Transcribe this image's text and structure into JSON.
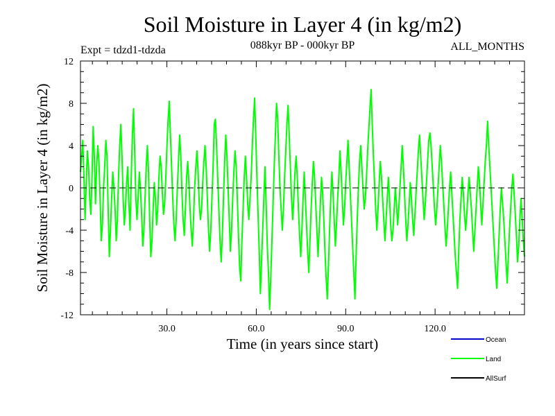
{
  "chart_data": {
    "type": "line",
    "title": "Soil Moisture in Layer 4 (in kg/m2)",
    "subtitle_left": "Expt = tdzd1-tdzda",
    "subtitle_center": "088kyr BP - 000kyr BP",
    "subtitle_right": "ALL_MONTHS",
    "xlabel": "Time (in years since start)",
    "ylabel": "Soil Moisture in Layer 4 (in kg/m2)",
    "xlim": [
      1,
      150
    ],
    "ylim": [
      -12,
      12
    ],
    "x_ticks": [
      30,
      60,
      90,
      120
    ],
    "x_tick_labels": [
      "30.0",
      "60.0",
      "90.0",
      "120.0"
    ],
    "y_ticks": [
      -12,
      -8,
      -4,
      0,
      4,
      8,
      12
    ],
    "y_tick_labels": [
      "-12",
      "-8",
      "-4",
      "0",
      "4",
      "8",
      "12"
    ],
    "zero_line": true,
    "legend": [
      {
        "name": "Ocean",
        "color": "#0000cc"
      },
      {
        "name": "Land",
        "color": "#00ff00"
      },
      {
        "name": "AllSurf",
        "color": "#000000"
      }
    ],
    "series": [
      {
        "name": "Land",
        "color": "#00ff00",
        "x_start": 1,
        "x_end": 150,
        "values": [
          1.5,
          3.0,
          4.5,
          1.0,
          -3.0,
          0.5,
          3.5,
          2.0,
          -1.0,
          -2.5,
          1.0,
          5.8,
          3.0,
          -1.5,
          2.0,
          4.0,
          2.5,
          -1.0,
          -5.0,
          -3.5,
          0.0,
          2.0,
          4.5,
          3.0,
          -2.0,
          -6.5,
          -4.0,
          -1.0,
          1.5,
          0.0,
          -2.0,
          -5.0,
          -3.0,
          1.0,
          4.0,
          6.0,
          3.0,
          -1.0,
          -3.5,
          -2.0,
          0.5,
          2.0,
          -1.5,
          -4.0,
          1.0,
          5.0,
          7.5,
          3.5,
          -1.0,
          -3.0,
          -1.0,
          1.5,
          0.0,
          -2.5,
          -5.5,
          -4.0,
          -1.0,
          2.0,
          4.0,
          1.5,
          -3.0,
          -6.5,
          -5.0,
          -2.0,
          0.5,
          -1.0,
          -3.5,
          -2.0,
          1.0,
          3.0,
          2.0,
          -0.5,
          -2.5,
          -1.5,
          1.0,
          4.0,
          6.5,
          8.2,
          5.0,
          2.0,
          -1.0,
          -3.5,
          -5.0,
          -3.0,
          0.0,
          2.5,
          5.0,
          3.0,
          -0.5,
          -3.0,
          -4.5,
          -2.0,
          1.0,
          2.5,
          0.5,
          -2.0,
          -4.0,
          -5.5,
          -3.0,
          0.0,
          2.0,
          3.5,
          1.5,
          -1.5,
          -3.0,
          -2.0,
          0.5,
          2.5,
          4.0,
          2.0,
          -1.0,
          -4.0,
          -6.0,
          -4.0,
          -1.0,
          2.0,
          6.0,
          6.5,
          4.0,
          1.0,
          -2.0,
          -5.0,
          -7.0,
          -4.5,
          -1.0,
          2.5,
          5.0,
          3.0,
          0.0,
          -3.0,
          -6.0,
          -4.0,
          -1.0,
          1.5,
          3.5,
          2.0,
          -1.0,
          -4.5,
          -7.5,
          -8.8,
          -5.0,
          -2.0,
          1.0,
          3.0,
          1.0,
          -1.5,
          -3.0,
          -1.0,
          1.0,
          4.0,
          6.5,
          8.5,
          5.0,
          1.0,
          -2.5,
          -6.0,
          -10.0,
          -7.0,
          -4.0,
          -1.0,
          2.0,
          -1.5,
          -5.5,
          -8.0,
          -11.5,
          -8.5,
          -5.0,
          -1.5,
          2.0,
          5.0,
          8.0,
          6.5,
          3.0,
          0.0,
          -2.0,
          -4.0,
          -2.0,
          1.0,
          3.5,
          6.0,
          7.8,
          5.0,
          2.0,
          -1.0,
          -3.0,
          -1.0,
          1.5,
          3.0,
          1.0,
          -2.0,
          -4.5,
          -6.5,
          -4.0,
          -1.0,
          1.5,
          -1.0,
          -3.5,
          -6.0,
          -8.0,
          -5.0,
          -2.0,
          0.5,
          2.5,
          1.0,
          -1.5,
          -4.0,
          -6.5,
          -4.0,
          -1.5,
          1.0,
          -0.5,
          -3.0,
          -6.0,
          -8.5,
          -10.5,
          -7.5,
          -4.0,
          -1.0,
          1.5,
          -0.5,
          -3.0,
          -5.5,
          -3.5,
          -1.0,
          1.0,
          3.5,
          1.5,
          -1.0,
          -3.5,
          -2.0,
          0.5,
          2.5,
          4.5,
          2.0,
          -0.5,
          -3.0,
          -5.5,
          -8.0,
          -10.5,
          -6.5,
          -3.0,
          0.0,
          2.5,
          4.0,
          2.0,
          0.0,
          -2.0,
          -1.0,
          1.0,
          3.5,
          5.5,
          7.5,
          9.3,
          6.0,
          3.0,
          0.5,
          -2.0,
          -4.0,
          -2.0,
          0.5,
          2.5,
          1.0,
          -1.0,
          -3.0,
          -5.0,
          -3.0,
          -1.0,
          1.0,
          -1.0,
          -3.5,
          -5.0,
          -4.0,
          -2.0,
          0.0,
          -1.5,
          -3.5,
          -2.0,
          0.0,
          2.0,
          4.0,
          2.0,
          -0.5,
          -3.0,
          -5.0,
          -3.5,
          -1.5,
          0.5,
          -1.0,
          -3.0,
          -4.5,
          -2.5,
          -0.5,
          1.5,
          3.5,
          5.0,
          3.0,
          1.0,
          -1.0,
          -3.0,
          -1.5,
          0.5,
          2.5,
          4.5,
          5.2,
          4.0,
          2.0,
          0.0,
          -2.0,
          -3.5,
          -2.0,
          0.0,
          2.0,
          4.0,
          2.5,
          0.5,
          -1.5,
          -3.5,
          -5.5,
          -4.0,
          -2.0,
          0.0,
          1.5,
          -0.5,
          -2.5,
          -4.5,
          -6.5,
          -8.0,
          -9.5,
          -6.0,
          -3.0,
          -1.0,
          1.0,
          -0.5,
          -2.5,
          -4.0,
          -2.5,
          -0.5,
          1.0,
          -0.5,
          -2.0,
          -4.0,
          -6.0,
          -4.0,
          -2.0,
          0.0,
          2.0,
          0.5,
          -1.5,
          -3.5,
          -1.5,
          0.5,
          2.5,
          4.0,
          6.3,
          4.0,
          2.0,
          0.0,
          -2.0,
          -4.0,
          -6.0,
          -8.0,
          -9.5,
          -7.0,
          -4.5,
          -2.0,
          0.0,
          -1.5,
          -3.0,
          -5.0,
          -7.0,
          -9.0,
          -6.5,
          -4.0,
          -2.0,
          0.0,
          1.3,
          -0.5,
          -2.5,
          -4.5,
          -7.0,
          -5.5,
          -3.0,
          -1.0,
          -3.0,
          -5.0,
          -6.5
        ]
      }
    ]
  }
}
